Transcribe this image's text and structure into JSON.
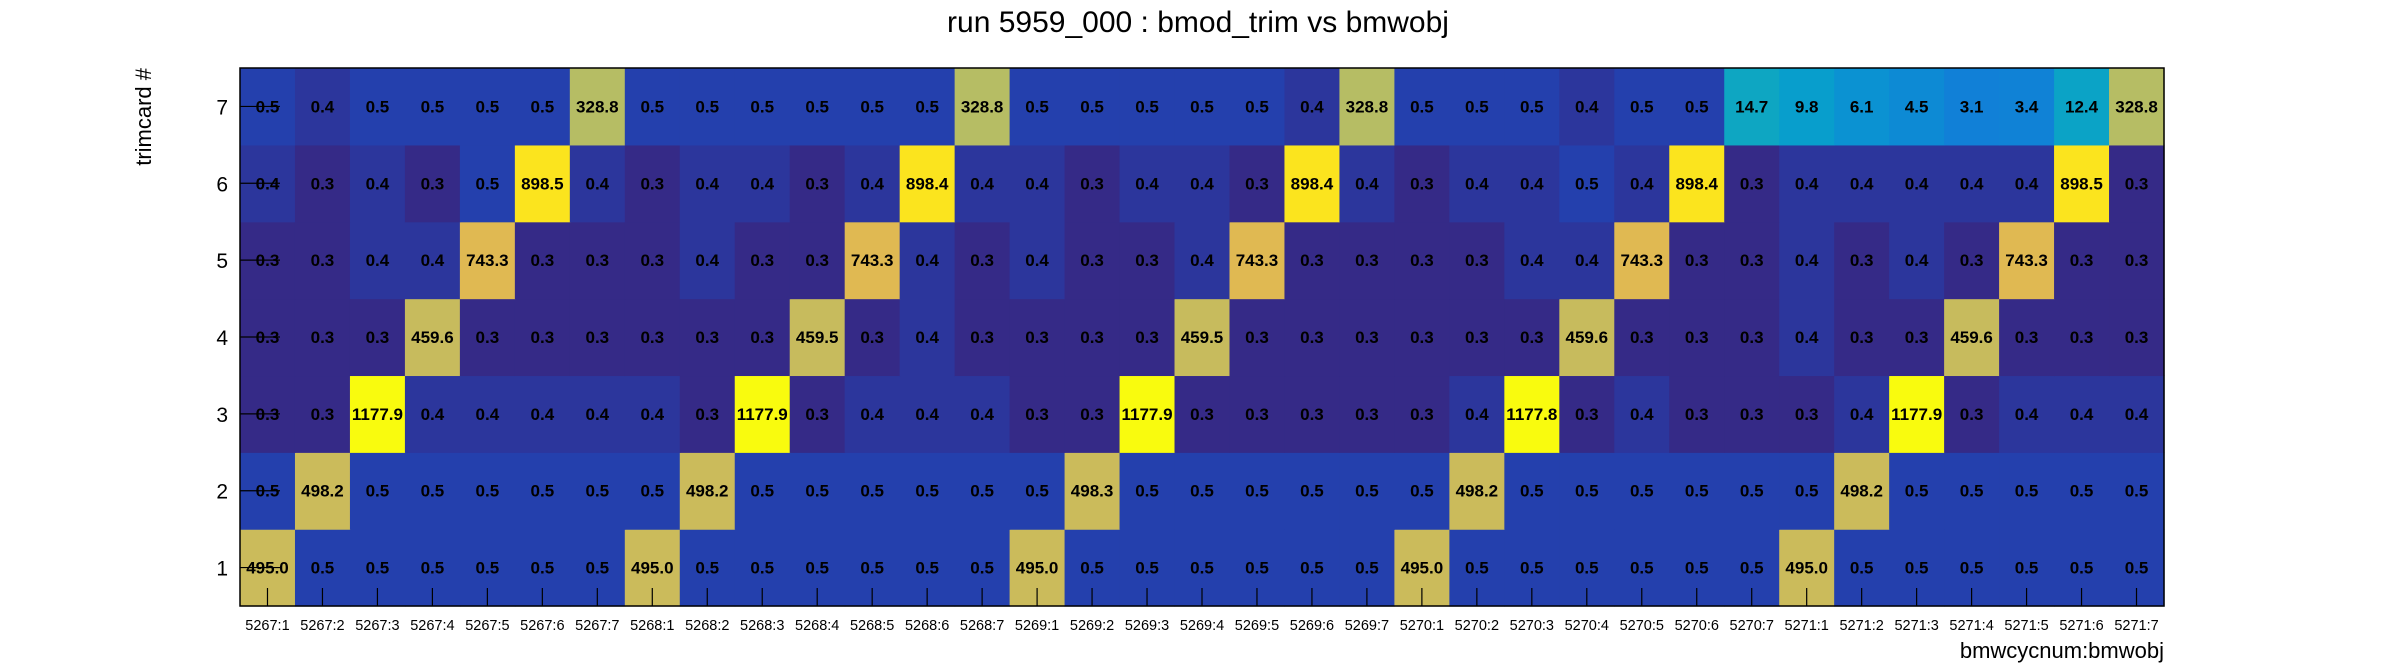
{
  "chart_data": {
    "type": "heatmap",
    "title": "run 5959_000 : bmod_trim vs bmwobj",
    "xlabel": "bmwcycnum:bmwobj",
    "ylabel": "trimcard #",
    "x": [
      "5267:1",
      "5267:2",
      "5267:3",
      "5267:4",
      "5267:5",
      "5267:6",
      "5267:7",
      "5268:1",
      "5268:2",
      "5268:3",
      "5268:4",
      "5268:5",
      "5268:6",
      "5268:7",
      "5269:1",
      "5269:2",
      "5269:3",
      "5269:4",
      "5269:5",
      "5269:6",
      "5269:7",
      "5270:1",
      "5270:2",
      "5270:3",
      "5270:4",
      "5270:5",
      "5270:6",
      "5270:7",
      "5271:1",
      "5271:2",
      "5271:3",
      "5271:4",
      "5271:5",
      "5271:6",
      "5271:7"
    ],
    "y": [
      "1",
      "2",
      "3",
      "4",
      "5",
      "6",
      "7"
    ],
    "rows": [
      {
        "trimcard": "1",
        "values": [
          "495.0",
          "0.5",
          "0.5",
          "0.5",
          "0.5",
          "0.5",
          "0.5",
          "495.0",
          "0.5",
          "0.5",
          "0.5",
          "0.5",
          "0.5",
          "0.5",
          "495.0",
          "0.5",
          "0.5",
          "0.5",
          "0.5",
          "0.5",
          "0.5",
          "495.0",
          "0.5",
          "0.5",
          "0.5",
          "0.5",
          "0.5",
          "0.5",
          "495.0",
          "0.5",
          "0.5",
          "0.5",
          "0.5",
          "0.5",
          "0.5"
        ]
      },
      {
        "trimcard": "2",
        "values": [
          "0.5",
          "498.2",
          "0.5",
          "0.5",
          "0.5",
          "0.5",
          "0.5",
          "0.5",
          "498.2",
          "0.5",
          "0.5",
          "0.5",
          "0.5",
          "0.5",
          "0.5",
          "498.3",
          "0.5",
          "0.5",
          "0.5",
          "0.5",
          "0.5",
          "0.5",
          "498.2",
          "0.5",
          "0.5",
          "0.5",
          "0.5",
          "0.5",
          "0.5",
          "498.2",
          "0.5",
          "0.5",
          "0.5",
          "0.5",
          "0.5"
        ]
      },
      {
        "trimcard": "3",
        "values": [
          "0.3",
          "0.3",
          "1177.9",
          "0.4",
          "0.4",
          "0.4",
          "0.4",
          "0.4",
          "0.3",
          "1177.9",
          "0.3",
          "0.4",
          "0.4",
          "0.4",
          "0.3",
          "0.3",
          "1177.9",
          "0.3",
          "0.3",
          "0.3",
          "0.3",
          "0.3",
          "0.4",
          "1177.8",
          "0.3",
          "0.4",
          "0.3",
          "0.3",
          "0.3",
          "0.4",
          "1177.9",
          "0.3",
          "0.4",
          "0.4",
          "0.4"
        ]
      },
      {
        "trimcard": "4",
        "values": [
          "0.3",
          "0.3",
          "0.3",
          "459.6",
          "0.3",
          "0.3",
          "0.3",
          "0.3",
          "0.3",
          "0.3",
          "459.5",
          "0.3",
          "0.4",
          "0.3",
          "0.3",
          "0.3",
          "0.3",
          "459.5",
          "0.3",
          "0.3",
          "0.3",
          "0.3",
          "0.3",
          "0.3",
          "459.6",
          "0.3",
          "0.3",
          "0.3",
          "0.4",
          "0.3",
          "0.3",
          "459.6",
          "0.3",
          "0.3",
          "0.3"
        ]
      },
      {
        "trimcard": "5",
        "values": [
          "0.3",
          "0.3",
          "0.4",
          "0.4",
          "743.3",
          "0.3",
          "0.3",
          "0.3",
          "0.4",
          "0.3",
          "0.3",
          "743.3",
          "0.4",
          "0.3",
          "0.4",
          "0.3",
          "0.3",
          "0.4",
          "743.3",
          "0.3",
          "0.3",
          "0.3",
          "0.3",
          "0.4",
          "0.4",
          "743.3",
          "0.3",
          "0.3",
          "0.4",
          "0.3",
          "0.4",
          "0.3",
          "743.3",
          "0.3",
          "0.3"
        ]
      },
      {
        "trimcard": "6",
        "values": [
          "0.4",
          "0.3",
          "0.4",
          "0.3",
          "0.5",
          "898.5",
          "0.4",
          "0.3",
          "0.4",
          "0.4",
          "0.3",
          "0.4",
          "898.4",
          "0.4",
          "0.4",
          "0.3",
          "0.4",
          "0.4",
          "0.3",
          "898.4",
          "0.4",
          "0.3",
          "0.4",
          "0.4",
          "0.5",
          "0.4",
          "898.4",
          "0.3",
          "0.4",
          "0.4",
          "0.4",
          "0.4",
          "0.4",
          "898.5",
          "0.3"
        ]
      },
      {
        "trimcard": "7",
        "values": [
          "0.5",
          "0.4",
          "0.5",
          "0.5",
          "0.5",
          "0.5",
          "328.8",
          "0.5",
          "0.5",
          "0.5",
          "0.5",
          "0.5",
          "0.5",
          "328.8",
          "0.5",
          "0.5",
          "0.5",
          "0.5",
          "0.5",
          "0.4",
          "328.8",
          "0.5",
          "0.5",
          "0.5",
          "0.4",
          "0.5",
          "0.5",
          "14.7",
          "9.8",
          "6.1",
          "4.5",
          "3.1",
          "3.4",
          "12.4",
          "328.8"
        ]
      }
    ],
    "colormap": "parula",
    "legend": "none",
    "grid": false
  }
}
